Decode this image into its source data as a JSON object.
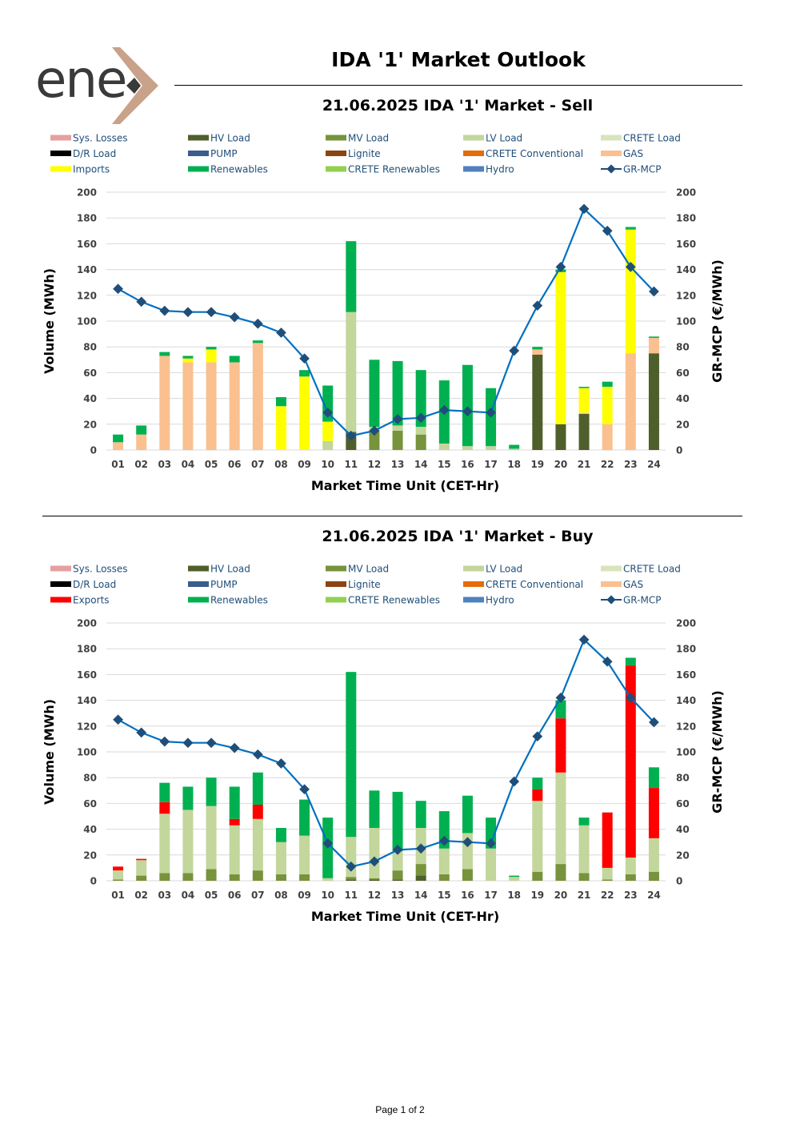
{
  "header": {
    "brand": "ene",
    "title": "IDA '1' Market Outlook"
  },
  "footer": {
    "page": "Page 1 of 2"
  },
  "colors": {
    "Sys. Losses": "#E6A0A0",
    "HV Load": "#4E5F2B",
    "MV Load": "#77933C",
    "LV Load": "#C3D69B",
    "CRETE Load": "#D7E4BC",
    "D/R Load": "#000000",
    "PUMP": "#3A5D8C",
    "Lignite": "#8B4513",
    "CRETE Conventional": "#E46C0A",
    "GAS": "#FAC090",
    "Imports": "#FFFF00",
    "Exports": "#FF0000",
    "Renewables": "#00B050",
    "CRETE Renewables": "#92D050",
    "Hydro": "#4F81BD",
    "GR-MCP": "#1F4E79"
  },
  "chart_data": [
    {
      "type": "bar",
      "title": "21.06.2025  IDA '1' Market - Sell",
      "xlabel": "Market Time Unit (CET-Hr)",
      "ylabel": "Volume (MWh)",
      "y2label": "GR-MCP (€/MWh)",
      "ylim": [
        0,
        200
      ],
      "y2lim": [
        0,
        200
      ],
      "yticks": [
        "0",
        "20",
        "40",
        "60",
        "80",
        "100",
        "120",
        "140",
        "160",
        "180",
        "200"
      ],
      "legend": [
        "Sys. Losses",
        "HV Load",
        "MV Load",
        "LV Load",
        "CRETE Load",
        "D/R Load",
        "PUMP",
        "Lignite",
        "CRETE Conventional",
        "GAS",
        "Imports",
        "Renewables",
        "CRETE Renewables",
        "Hydro",
        "GR-MCP"
      ],
      "categories": [
        "01",
        "02",
        "03",
        "04",
        "05",
        "06",
        "07",
        "08",
        "09",
        "10",
        "11",
        "12",
        "13",
        "14",
        "15",
        "16",
        "17",
        "18",
        "19",
        "20",
        "21",
        "22",
        "23",
        "24"
      ],
      "series": [
        {
          "name": "HV Load",
          "values": [
            0,
            0,
            0,
            0,
            0,
            0,
            0,
            0,
            0,
            0,
            14,
            0,
            0,
            0,
            0,
            0,
            0,
            0,
            74,
            20,
            28,
            0,
            0,
            75
          ]
        },
        {
          "name": "MV Load",
          "values": [
            0,
            0,
            0,
            0,
            0,
            0,
            0,
            0,
            0,
            0,
            0,
            15,
            15,
            12,
            0,
            0,
            0,
            0,
            0,
            0,
            0,
            0,
            0,
            0
          ]
        },
        {
          "name": "LV Load",
          "values": [
            0,
            0,
            0,
            0,
            0,
            0,
            0,
            0,
            0,
            7,
            93,
            3,
            4,
            6,
            5,
            3,
            3,
            1,
            0,
            0,
            0,
            0,
            0,
            0
          ]
        },
        {
          "name": "GAS",
          "values": [
            6,
            12,
            73,
            68,
            68,
            68,
            83,
            0,
            0,
            0,
            0,
            0,
            0,
            0,
            0,
            0,
            0,
            0,
            4,
            0,
            1,
            20,
            75,
            12
          ]
        },
        {
          "name": "Imports",
          "values": [
            0,
            0,
            0,
            3,
            10,
            0,
            0,
            34,
            57,
            15,
            0,
            0,
            0,
            0,
            0,
            0,
            0,
            0,
            0,
            118,
            19,
            29,
            96,
            0
          ]
        },
        {
          "name": "Renewables",
          "values": [
            6,
            7,
            3,
            2,
            2,
            5,
            2,
            7,
            5,
            28,
            55,
            52,
            50,
            44,
            49,
            63,
            45,
            3,
            2,
            2,
            1,
            4,
            2,
            1
          ]
        }
      ],
      "line": {
        "name": "GR-MCP",
        "values": [
          125,
          115,
          108,
          107,
          107,
          103,
          98,
          91,
          71,
          29,
          11,
          15,
          24,
          25,
          31,
          30,
          29,
          77,
          112,
          142,
          187,
          170,
          142,
          123
        ]
      }
    },
    {
      "type": "bar",
      "title": "21.06.2025  IDA '1' Market - Buy",
      "xlabel": "Market Time Unit (CET-Hr)",
      "ylabel": "Volume (MWh)",
      "y2label": "GR-MCP (€/MWh)",
      "ylim": [
        0,
        200
      ],
      "y2lim": [
        0,
        200
      ],
      "yticks": [
        "0",
        "20",
        "40",
        "60",
        "80",
        "100",
        "120",
        "140",
        "160",
        "180",
        "200"
      ],
      "legend": [
        "Sys. Losses",
        "HV Load",
        "MV Load",
        "LV Load",
        "CRETE Load",
        "D/R Load",
        "PUMP",
        "Lignite",
        "CRETE Conventional",
        "GAS",
        "Exports",
        "Renewables",
        "CRETE Renewables",
        "Hydro",
        "GR-MCP"
      ],
      "categories": [
        "01",
        "02",
        "03",
        "04",
        "05",
        "06",
        "07",
        "08",
        "09",
        "10",
        "11",
        "12",
        "13",
        "14",
        "15",
        "16",
        "17",
        "18",
        "19",
        "20",
        "21",
        "22",
        "23",
        "24"
      ],
      "series": [
        {
          "name": "HV Load",
          "values": [
            0,
            0,
            0,
            0,
            0,
            0,
            0,
            0,
            0,
            0,
            1,
            1,
            1,
            4,
            0,
            0,
            0,
            0,
            0,
            0,
            0,
            0,
            0,
            0
          ]
        },
        {
          "name": "MV Load",
          "values": [
            1,
            4,
            6,
            6,
            9,
            5,
            8,
            5,
            5,
            0,
            2,
            1,
            7,
            9,
            5,
            9,
            0,
            0,
            7,
            13,
            6,
            1,
            5,
            7
          ]
        },
        {
          "name": "LV Load",
          "values": [
            7,
            12,
            46,
            49,
            49,
            38,
            40,
            25,
            30,
            2,
            31,
            39,
            15,
            28,
            20,
            28,
            25,
            3,
            55,
            71,
            37,
            9,
            13,
            26
          ]
        },
        {
          "name": "Exports",
          "values": [
            3,
            1,
            9,
            0,
            0,
            5,
            11,
            0,
            0,
            0,
            0,
            0,
            0,
            0,
            0,
            0,
            0,
            0,
            9,
            42,
            0,
            43,
            149,
            39
          ]
        },
        {
          "name": "Renewables",
          "values": [
            0,
            0,
            15,
            18,
            22,
            25,
            25,
            11,
            28,
            47,
            128,
            29,
            46,
            21,
            29,
            29,
            24,
            1,
            9,
            14,
            6,
            0,
            6,
            16
          ]
        }
      ],
      "line": {
        "name": "GR-MCP",
        "values": [
          125,
          115,
          108,
          107,
          107,
          103,
          98,
          91,
          71,
          29,
          11,
          15,
          24,
          25,
          31,
          30,
          29,
          77,
          112,
          142,
          187,
          170,
          142,
          123
        ]
      }
    }
  ]
}
